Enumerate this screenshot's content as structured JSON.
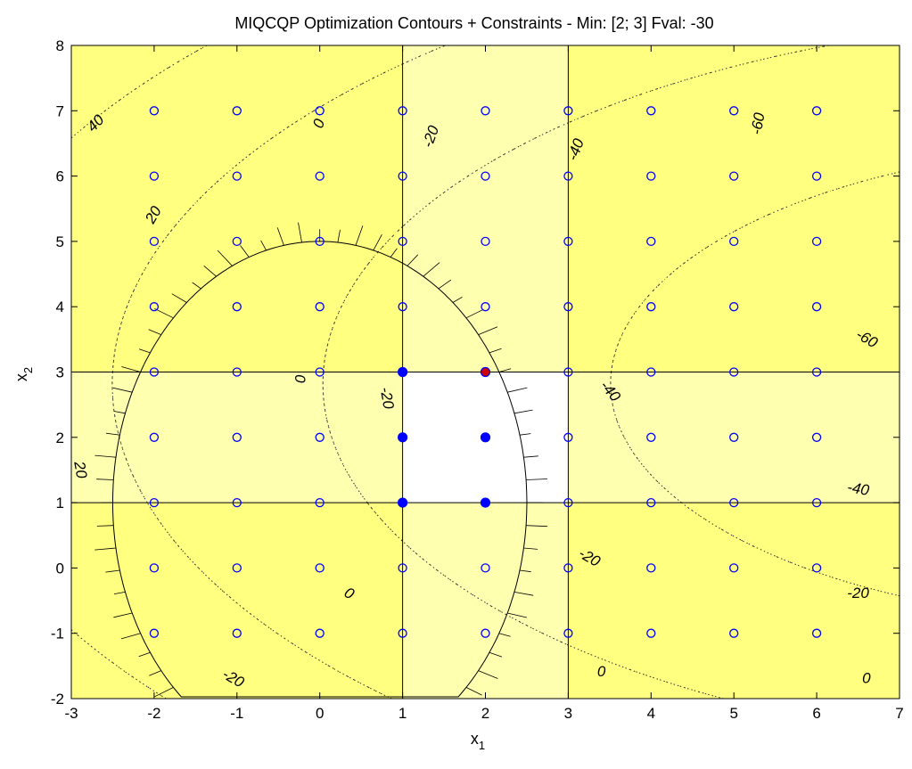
{
  "chart_data": {
    "type": "contour",
    "title": "MIQCQP Optimization Contours + Constraints - Min: [2; 3] Fval: -30",
    "xlabel": "x",
    "xlabel_sub": "1",
    "ylabel": "x",
    "ylabel_sub": "2",
    "xlim": [
      -3,
      7
    ],
    "ylim": [
      -2,
      8
    ],
    "x_ticks": [
      -3,
      -2,
      -1,
      0,
      1,
      2,
      3,
      4,
      5,
      6,
      7
    ],
    "y_ticks": [
      -2,
      -1,
      0,
      1,
      2,
      3,
      4,
      5,
      6,
      7,
      8
    ],
    "optimum": {
      "x": 2,
      "y": 3,
      "fval": -30
    },
    "bound_lines": {
      "x": [
        1,
        3
      ],
      "y": [
        1,
        3
      ]
    },
    "colors": {
      "infeasible": "#ffff80",
      "partial": "#ffffb0",
      "feasible": "#ffffff",
      "grid_point": "#0000ff",
      "optimum": "#cc0000"
    },
    "grid_points": {
      "x_values": [
        -2,
        -1,
        0,
        1,
        2,
        3,
        4,
        5,
        6
      ],
      "y_values": [
        -1,
        0,
        1,
        2,
        3,
        4,
        5,
        6,
        7
      ]
    },
    "feasible_points": [
      [
        1,
        1
      ],
      [
        1,
        2
      ],
      [
        1,
        3
      ],
      [
        2,
        1
      ],
      [
        2,
        2
      ]
    ],
    "quadratic_constraint": {
      "type": "ellipse",
      "center": [
        0,
        1
      ],
      "semi_axis_x": 2.5,
      "semi_axis_y": 4,
      "feasible_side": "inside"
    },
    "contour_levels": [
      -60,
      -40,
      -20,
      0,
      20,
      40
    ],
    "contour_labels": [
      {
        "text": "40",
        "x": -2.7,
        "y": 6.8,
        "angle": -45
      },
      {
        "text": "20",
        "x": -2.0,
        "y": 5.4,
        "angle": -60
      },
      {
        "text": "0",
        "x": 0.0,
        "y": 6.8,
        "angle": -70
      },
      {
        "text": "-20",
        "x": 1.35,
        "y": 6.6,
        "angle": -70
      },
      {
        "text": "-40",
        "x": 3.1,
        "y": 6.4,
        "angle": -70
      },
      {
        "text": "-60",
        "x": 5.3,
        "y": 6.8,
        "angle": -80
      },
      {
        "text": "-60",
        "x": 6.6,
        "y": 3.5,
        "angle": 30
      },
      {
        "text": "-40",
        "x": 3.5,
        "y": 2.7,
        "angle": 50
      },
      {
        "text": "-40",
        "x": 6.5,
        "y": 1.2,
        "angle": 10
      },
      {
        "text": "-20",
        "x": 3.25,
        "y": 0.15,
        "angle": 30
      },
      {
        "text": "-20",
        "x": 6.5,
        "y": -0.4,
        "angle": 0
      },
      {
        "text": "0",
        "x": -0.25,
        "y": 2.9,
        "angle": 90
      },
      {
        "text": "-20",
        "x": 0.8,
        "y": 2.6,
        "angle": 80
      },
      {
        "text": "20",
        "x": -2.9,
        "y": 1.5,
        "angle": 80
      },
      {
        "text": "0",
        "x": 0.35,
        "y": -0.4,
        "angle": 30
      },
      {
        "text": "-20",
        "x": -1.05,
        "y": -1.7,
        "angle": 30
      },
      {
        "text": "0",
        "x": 3.4,
        "y": -1.6,
        "angle": 0
      },
      {
        "text": "0",
        "x": 6.6,
        "y": -1.7,
        "angle": 0
      }
    ]
  }
}
